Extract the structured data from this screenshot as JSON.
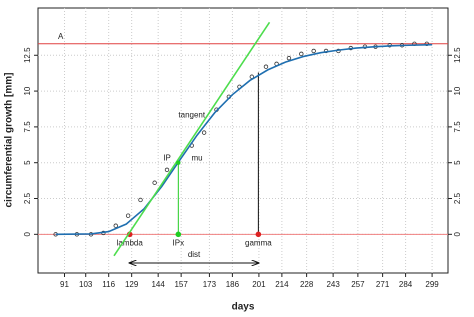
{
  "chart_data": {
    "type": "growth",
    "x_label": "days",
    "y_label": "circumferential growth [mm]",
    "xlim": [
      76,
      308
    ],
    "ylim": [
      -2.7,
      15.8
    ],
    "xticks": [
      91,
      103,
      116,
      129,
      144,
      157,
      173,
      186,
      201,
      214,
      228,
      243,
      257,
      271,
      284,
      299
    ],
    "yticks": [
      0,
      2.5,
      5,
      7.5,
      10,
      12.5
    ],
    "grid": true,
    "series": [
      {
        "type": "scatter",
        "color": "#333333",
        "x": [
          86,
          98,
          106,
          113,
          120,
          127,
          134,
          142,
          149,
          163,
          170,
          177,
          184,
          190,
          197,
          205,
          211,
          218,
          225,
          232,
          239,
          246,
          253,
          261,
          267,
          275,
          282,
          289,
          296
        ],
        "values": [
          0.0,
          0.0,
          0.0,
          0.1,
          0.6,
          1.3,
          2.4,
          3.6,
          4.5,
          6.2,
          7.1,
          8.7,
          9.6,
          10.3,
          11.0,
          11.7,
          11.9,
          12.3,
          12.6,
          12.8,
          12.8,
          12.8,
          13.0,
          13.1,
          13.1,
          13.2,
          13.2,
          13.3,
          13.3
        ]
      },
      {
        "type": "line",
        "color": "#1f6fb0",
        "x": [
          86,
          106,
          116,
          126,
          136,
          146,
          156,
          166,
          176,
          186,
          196,
          206,
          216,
          226,
          236,
          246,
          256,
          266,
          276,
          286,
          299
        ],
        "values": [
          0.0,
          0.03,
          0.19,
          0.72,
          1.78,
          3.34,
          5.14,
          6.92,
          8.49,
          9.75,
          10.75,
          11.48,
          12.02,
          12.41,
          12.68,
          12.86,
          13.0,
          13.09,
          13.16,
          13.2,
          13.24
        ]
      },
      {
        "type": "line",
        "color": "#4ddd4d",
        "x": [
          119,
          207
        ],
        "values": [
          -1.5,
          14.8
        ]
      }
    ],
    "hlines": [
      {
        "value": 13.3,
        "color": "#e04040",
        "label": "A"
      },
      {
        "value": 0,
        "color": "#f08080"
      }
    ],
    "parameters": [
      {
        "label": "lambda",
        "x": 127.9,
        "y": 0,
        "color": "#dd2222"
      },
      {
        "label": "IPx",
        "x": 155.4,
        "y": 5.0,
        "color": "#22cc22",
        "line_color": "#22cc22"
      },
      {
        "label": "gamma",
        "x": 200.7,
        "y": 11.3,
        "color": "#dd2222",
        "line_color": "#111111"
      }
    ],
    "annotations": [
      {
        "text": "tangent",
        "x": 163,
        "y": 8.3
      },
      {
        "text": "IP",
        "x": 149,
        "y": 5.3
      },
      {
        "text": "mu",
        "x": 166,
        "y": 5.3
      }
    ],
    "dist": {
      "label": "dist",
      "from": 127.9,
      "to": 200.7,
      "y": -2.0
    }
  }
}
